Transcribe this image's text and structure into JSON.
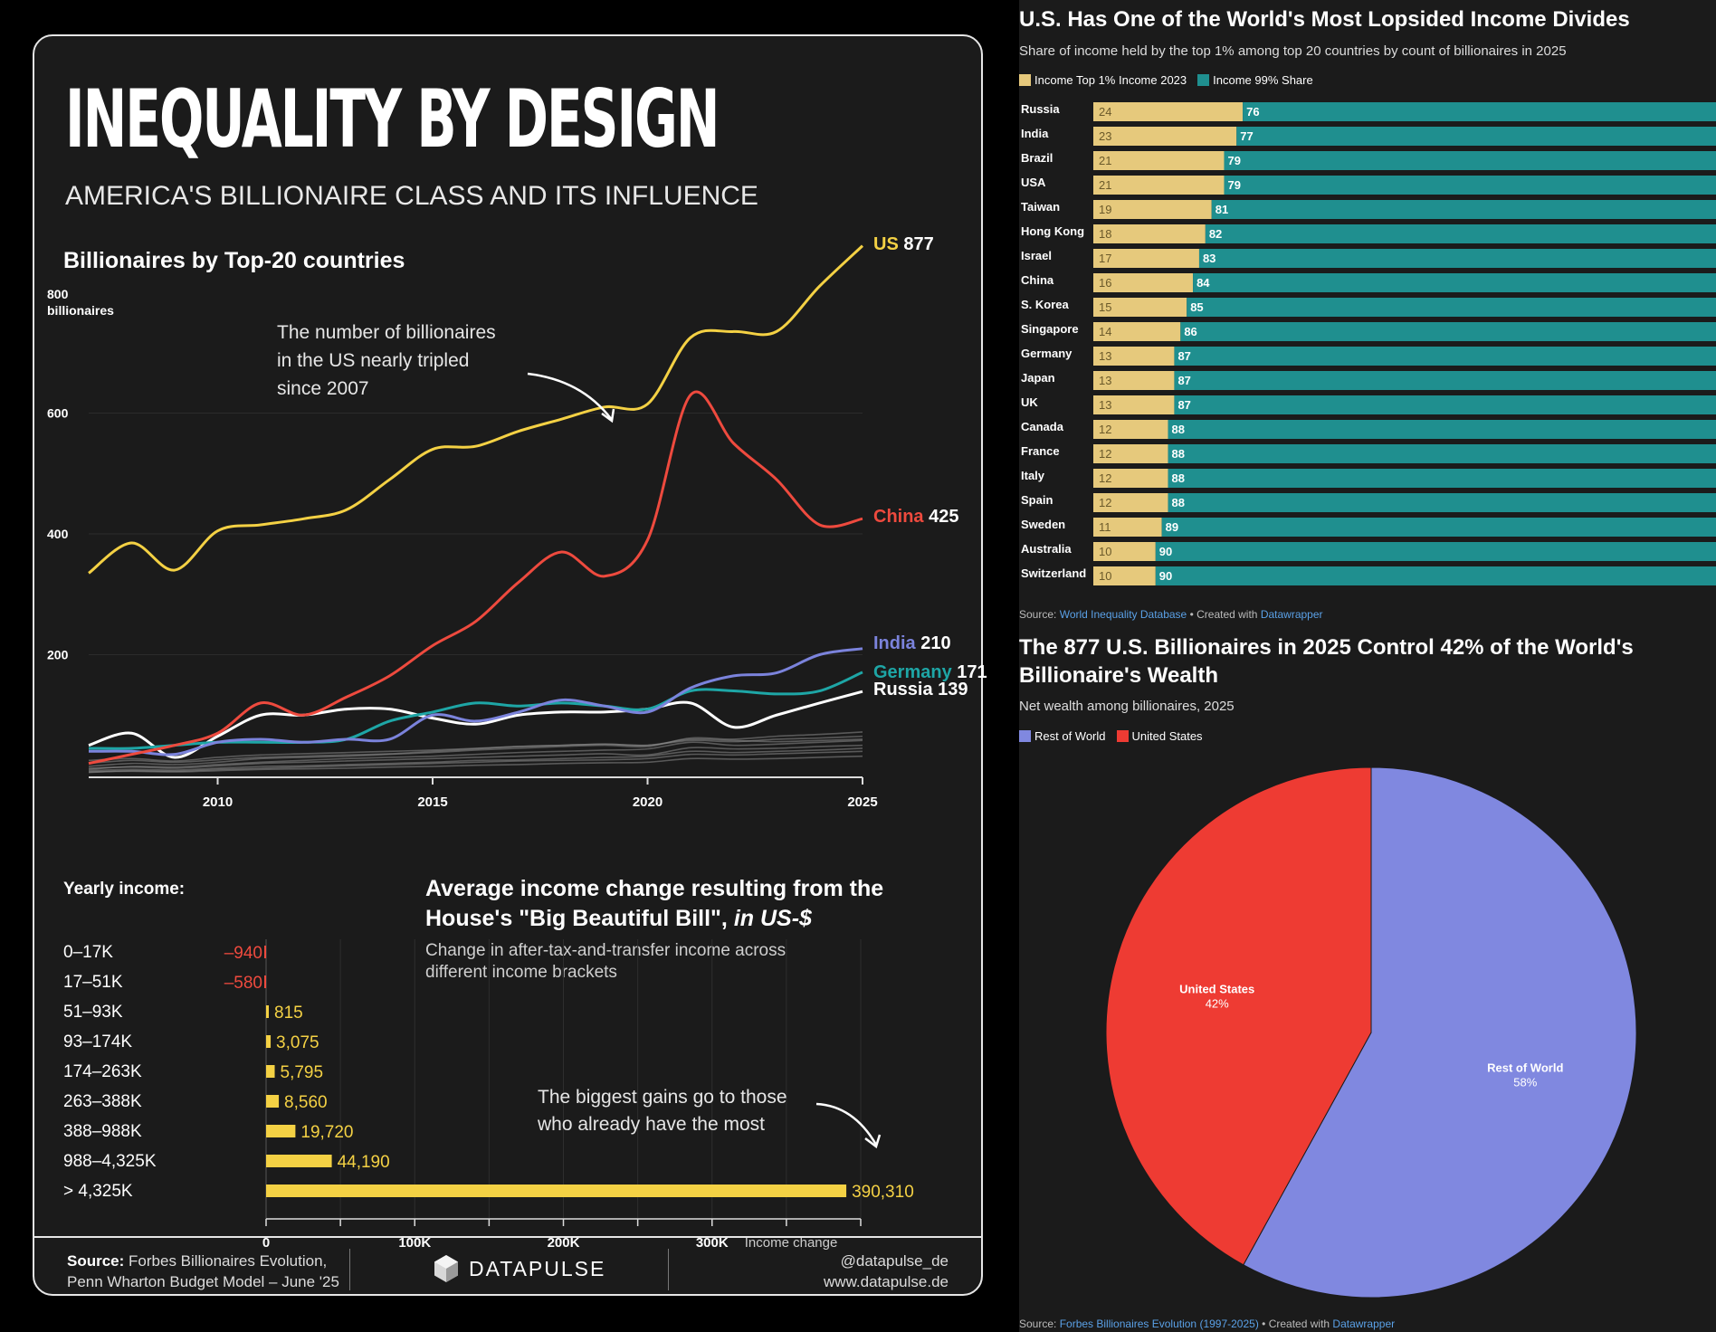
{
  "left": {
    "title": "INEQUALITY BY DESIGN",
    "subtitle": "AMERICA'S BILLIONAIRE CLASS AND ITS INFLUENCE",
    "source_label": "Source:",
    "source_text_1": "Forbes Billionaires Evolution,",
    "source_text_2": "Penn Wharton Budget Model – June '25",
    "brand": "DATAPULSE",
    "handle": "@datapulse_de",
    "website": "www.datapulse.de"
  },
  "chart_data": [
    {
      "type": "line",
      "title": "Billionaires by Top-20 countries",
      "ylabel": "billionaires",
      "y_top_label": "800",
      "ylim": [
        0,
        800
      ],
      "yticks": [
        200,
        400,
        600
      ],
      "xticks": [
        2010,
        2015,
        2020,
        2025
      ],
      "x": [
        2007,
        2008,
        2009,
        2010,
        2011,
        2012,
        2013,
        2014,
        2015,
        2016,
        2017,
        2018,
        2019,
        2020,
        2021,
        2022,
        2023,
        2024,
        2025
      ],
      "annotation": "The number of billionaires\nin the US nearly tripled\nsince 2007",
      "series": [
        {
          "name": "US",
          "end_label": "877",
          "color": "#f4d144",
          "values": [
            335,
            385,
            340,
            405,
            415,
            425,
            440,
            490,
            540,
            545,
            570,
            590,
            610,
            615,
            725,
            735,
            735,
            810,
            877
          ]
        },
        {
          "name": "China",
          "end_label": "425",
          "color": "#ee4a3e",
          "values": [
            20,
            35,
            50,
            70,
            120,
            100,
            130,
            165,
            215,
            255,
            320,
            370,
            330,
            390,
            630,
            550,
            490,
            415,
            425
          ]
        },
        {
          "name": "India",
          "end_label": "210",
          "color": "#7b83dc",
          "values": [
            40,
            40,
            35,
            55,
            60,
            55,
            60,
            60,
            100,
            90,
            105,
            125,
            115,
            105,
            145,
            165,
            170,
            200,
            210
          ]
        },
        {
          "name": "Germany",
          "end_label": "171",
          "color": "#1ea6a6",
          "values": [
            45,
            45,
            50,
            55,
            55,
            55,
            60,
            90,
            105,
            120,
            115,
            120,
            115,
            110,
            140,
            140,
            135,
            140,
            171
          ]
        },
        {
          "name": "Russia",
          "end_label": "139",
          "color": "#ffffff",
          "values": [
            50,
            70,
            30,
            65,
            100,
            100,
            110,
            110,
            95,
            85,
            100,
            105,
            105,
            110,
            120,
            80,
            100,
            120,
            139
          ]
        }
      ],
      "background_series": [
        [
          10,
          15,
          14,
          18,
          22,
          25,
          28,
          30,
          32,
          35,
          38,
          40,
          42,
          44,
          55,
          50,
          52,
          55,
          58
        ],
        [
          15,
          20,
          18,
          22,
          28,
          30,
          32,
          35,
          38,
          42,
          45,
          48,
          50,
          48,
          62,
          60,
          65,
          68,
          72
        ],
        [
          8,
          10,
          9,
          12,
          15,
          16,
          18,
          20,
          22,
          25,
          26,
          28,
          30,
          32,
          40,
          38,
          40,
          42,
          45
        ],
        [
          20,
          25,
          22,
          26,
          30,
          32,
          34,
          36,
          40,
          44,
          48,
          50,
          52,
          50,
          60,
          58,
          56,
          58,
          60
        ],
        [
          5,
          8,
          7,
          10,
          12,
          14,
          16,
          18,
          20,
          22,
          24,
          25,
          26,
          28,
          35,
          34,
          36,
          38,
          40
        ],
        [
          12,
          14,
          12,
          16,
          20,
          22,
          24,
          26,
          28,
          30,
          32,
          34,
          36,
          34,
          46,
          44,
          45,
          48,
          50
        ],
        [
          25,
          28,
          24,
          30,
          34,
          36,
          38,
          40,
          42,
          45,
          48,
          50,
          52,
          50,
          58,
          56,
          60,
          62,
          65
        ],
        [
          6,
          7,
          6,
          8,
          10,
          11,
          12,
          14,
          15,
          17,
          18,
          20,
          21,
          22,
          28,
          27,
          28,
          30,
          32
        ]
      ]
    },
    {
      "type": "bar",
      "title": "Average income change resulting from the House's \"Big Beautiful Bill\",",
      "title_suffix": "in US-$",
      "subtitle": "Change in after-tax-and-transfer income across different income brackets",
      "category_label": "Yearly income:",
      "categories": [
        "0–17K",
        "17–51K",
        "51–93K",
        "93–174K",
        "174–263K",
        "263–388K",
        "388–988K",
        "988–4,325K",
        "> 4,325K"
      ],
      "values": [
        -940,
        -580,
        815,
        3075,
        5795,
        8560,
        19720,
        44190,
        390310
      ],
      "value_labels": [
        "–940",
        "–580",
        "815",
        "3,075",
        "5,795",
        "8,560",
        "19,720",
        "44,190",
        "390,310"
      ],
      "xticks": [
        "0",
        "100K",
        "200K",
        "300K"
      ],
      "xlabel": "Income change",
      "xlim": [
        0,
        400000
      ],
      "annotation": "The biggest gains go to those\nwho already have the most"
    },
    {
      "type": "bar",
      "stacked": true,
      "title": "U.S. Has One of the World's Most Lopsided Income Divides",
      "subtitle": "Share of income held by the top 1% among top 20 countries by count of billionaires in 2025",
      "legend": [
        "Income Top 1% Income 2023",
        "Income 99% Share"
      ],
      "colors": [
        "#e6c97c",
        "#1f8f8f"
      ],
      "categories": [
        "Russia",
        "India",
        "Brazil",
        "USA",
        "Taiwan",
        "Hong Kong",
        "Israel",
        "China",
        "S. Korea",
        "Singapore",
        "Germany",
        "Japan",
        "UK",
        "Canada",
        "France",
        "Italy",
        "Spain",
        "Sweden",
        "Australia",
        "Switzerland"
      ],
      "series": [
        {
          "name": "Income Top 1% Income 2023",
          "values": [
            24,
            23,
            21,
            21,
            19,
            18,
            17,
            16,
            15,
            14,
            13,
            13,
            13,
            12,
            12,
            12,
            12,
            11,
            10,
            10
          ]
        },
        {
          "name": "Income 99% Share",
          "values": [
            76,
            77,
            79,
            79,
            81,
            82,
            83,
            84,
            85,
            86,
            87,
            87,
            87,
            88,
            88,
            88,
            88,
            89,
            90,
            90
          ]
        }
      ],
      "source_label": "Source:",
      "source_link": "World Inequality Database",
      "created_with": "• Created with",
      "created_link": "Datawrapper"
    },
    {
      "type": "pie",
      "title": "The 877 U.S. Billionaires in 2025 Control 42% of the World's Billionaire's Wealth",
      "subtitle": "Net wealth among billionaires, 2025",
      "legend": [
        "Rest of World",
        "United States"
      ],
      "slices": [
        {
          "name": "Rest of World",
          "value": 58,
          "label": "58%",
          "color": "#8088e0"
        },
        {
          "name": "United States",
          "value": 42,
          "label": "42%",
          "color": "#ee3b33"
        }
      ],
      "source_label": "Source:",
      "source_link": "Forbes Billionaires Evolution (1997-2025)",
      "created_with": "• Created with",
      "created_link": "Datawrapper"
    }
  ]
}
